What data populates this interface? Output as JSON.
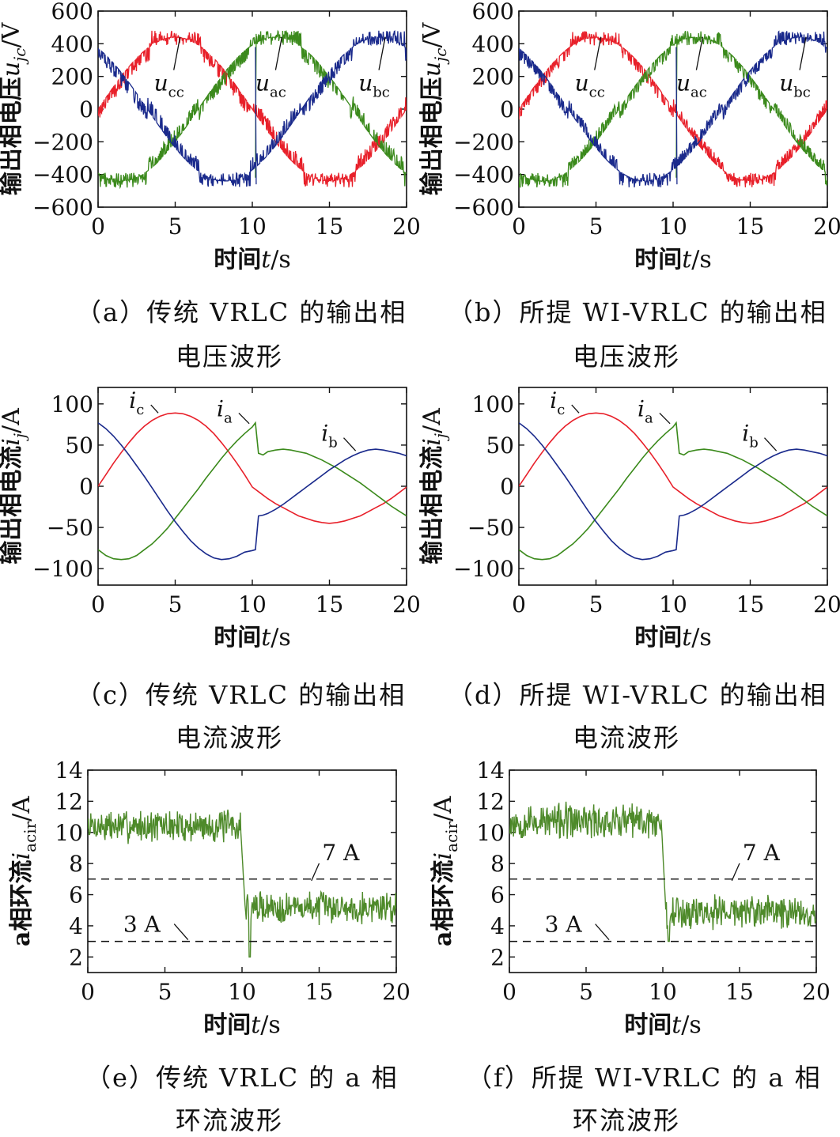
{
  "captions": [
    {
      "line1": "（a）传统 VRLC 的输出相",
      "line2": "电压波形"
    },
    {
      "line1": "（b）所提 WI-VRLC 的输出相",
      "line2": "电压波形"
    },
    {
      "line1": "（c）传统 VRLC 的输出相",
      "line2": "电流波形"
    },
    {
      "line1": "（d）所提 WI-VRLC 的输出相",
      "line2": "电流波形"
    },
    {
      "line1": "（e）传统 VRLC 的 a 相",
      "line2": "环流波形"
    },
    {
      "line1": "（f）所提 WI-VRLC 的 a 相",
      "line2": "环流波形"
    }
  ],
  "colors": {
    "red": "#e8202a",
    "green": "#3b8a1c",
    "blue": "#1a2a8c",
    "green_dark": "#4e8a2a",
    "axis": "#111111"
  },
  "chart_data": [
    {
      "id": "a",
      "type": "line",
      "xlabel": "时间t/s",
      "ylabel": "输出相电压u_jc/V",
      "xlim": [
        0,
        20
      ],
      "ylim": [
        -600,
        600
      ],
      "xticks": [
        0,
        5,
        10,
        15,
        20
      ],
      "yticks": [
        600,
        400,
        200,
        0,
        -200,
        -400,
        -600
      ],
      "series": [
        {
          "name": "u_cc",
          "color": "red",
          "amplitude": 440,
          "phase_deg": 0,
          "pwm_noise": 55
        },
        {
          "name": "u_ac",
          "color": "green",
          "amplitude": 440,
          "phase_deg": 240,
          "pwm_noise": 55,
          "step_at": 10.2
        },
        {
          "name": "u_bc",
          "color": "blue",
          "amplitude": 440,
          "phase_deg": 120,
          "pwm_noise": 55,
          "step_at": 10.2
        }
      ],
      "annotations": [
        {
          "text": "u_cc",
          "x": 4.6,
          "y": 200
        },
        {
          "text": "u_ac",
          "x": 11.2,
          "y": 200
        },
        {
          "text": "u_bc",
          "x": 17.9,
          "y": 200
        }
      ]
    },
    {
      "id": "b",
      "type": "line",
      "xlabel": "时间t/s",
      "ylabel": "输出相电压u_jc/V",
      "xlim": [
        0,
        20
      ],
      "ylim": [
        -600,
        600
      ],
      "xticks": [
        0,
        5,
        10,
        15,
        20
      ],
      "yticks": [
        600,
        400,
        200,
        0,
        -200,
        -400,
        -600
      ],
      "series": [
        {
          "name": "u_cc",
          "color": "red",
          "amplitude": 440,
          "phase_deg": 0,
          "pwm_noise": 45
        },
        {
          "name": "u_ac",
          "color": "green",
          "amplitude": 440,
          "phase_deg": 240,
          "pwm_noise": 45,
          "step_at": 10.2
        },
        {
          "name": "u_bc",
          "color": "blue",
          "amplitude": 440,
          "phase_deg": 120,
          "pwm_noise": 45,
          "step_at": 10.2
        }
      ],
      "annotations": [
        {
          "text": "u_cc",
          "x": 4.6,
          "y": 200
        },
        {
          "text": "u_ac",
          "x": 11.2,
          "y": 200
        },
        {
          "text": "u_bc",
          "x": 17.9,
          "y": 200
        }
      ]
    },
    {
      "id": "c",
      "type": "line",
      "xlabel": "时间t/s",
      "ylabel": "输出相电流i_j/A",
      "xlim": [
        0,
        20
      ],
      "ylim": [
        -120,
        120
      ],
      "xticks": [
        0,
        5,
        10,
        15,
        20
      ],
      "yticks": [
        100,
        50,
        0,
        -50,
        -100
      ],
      "series": [
        {
          "name": "i_c",
          "color": "red",
          "x": [
            0,
            0.5,
            1,
            1.5,
            2,
            2.5,
            3,
            3.5,
            4,
            4.5,
            5,
            5.5,
            6,
            6.5,
            7,
            7.5,
            8,
            8.5,
            9,
            9.5,
            10,
            10.5,
            11,
            11.5,
            12,
            12.5,
            13,
            13.5,
            14,
            14.5,
            15,
            15.5,
            16,
            16.5,
            17,
            17.5,
            18,
            18.5,
            19,
            19.5,
            20
          ],
          "values": [
            0,
            14,
            28,
            41,
            53,
            64,
            73,
            80,
            85,
            88,
            89,
            88,
            85,
            80,
            73,
            64,
            53,
            41,
            28,
            14,
            -1,
            -8,
            -15,
            -21,
            -26,
            -31,
            -36,
            -39,
            -42,
            -44,
            -45,
            -44,
            -42,
            -39,
            -36,
            -31,
            -26,
            -21,
            -15,
            -8,
            -1
          ]
        },
        {
          "name": "i_a",
          "color": "green",
          "x": [
            0,
            0.5,
            1,
            1.5,
            2,
            2.5,
            3,
            3.5,
            4,
            4.5,
            5,
            5.5,
            6,
            6.5,
            7,
            7.5,
            8,
            8.5,
            9,
            9.5,
            10,
            10.2,
            10.4,
            10.7,
            11,
            11.5,
            12,
            12.5,
            13,
            13.5,
            14,
            14.5,
            15,
            15.5,
            16,
            16.5,
            17,
            17.5,
            18,
            18.5,
            19,
            19.5,
            20
          ],
          "values": [
            -77,
            -84,
            -88,
            -89,
            -88,
            -84,
            -77,
            -70,
            -61,
            -51,
            -39,
            -27,
            -15,
            -3,
            10,
            22,
            34,
            45,
            55,
            64,
            72,
            77,
            40,
            38,
            42,
            44,
            45,
            44,
            42,
            40,
            36,
            32,
            27,
            22,
            16,
            10,
            4,
            -3,
            -10,
            -17,
            -24,
            -30,
            -36
          ]
        },
        {
          "name": "i_b",
          "color": "blue",
          "x": [
            0,
            0.5,
            1,
            1.5,
            2,
            2.5,
            3,
            3.5,
            4,
            4.5,
            5,
            5.5,
            6,
            6.5,
            7,
            7.5,
            8,
            8.5,
            9,
            9.5,
            10,
            10.2,
            10.4,
            10.7,
            11,
            11.5,
            12,
            12.5,
            13,
            13.5,
            14,
            14.5,
            15,
            15.5,
            16,
            16.5,
            17,
            17.5,
            18,
            18.5,
            19,
            19.5,
            20
          ],
          "values": [
            77,
            70,
            61,
            50,
            38,
            25,
            12,
            -2,
            -16,
            -30,
            -43,
            -55,
            -66,
            -75,
            -82,
            -87,
            -89,
            -88,
            -85,
            -80,
            -78,
            -77,
            -36,
            -35,
            -33,
            -28,
            -22,
            -15,
            -8,
            -1,
            6,
            13,
            20,
            26,
            32,
            37,
            41,
            44,
            45,
            44,
            42,
            40,
            37
          ]
        }
      ],
      "annotations": [
        {
          "text": "i_c",
          "x": 2.5,
          "y": 95
        },
        {
          "text": "i_a",
          "x": 8.2,
          "y": 85
        },
        {
          "text": "i_b",
          "x": 15.0,
          "y": 55
        }
      ]
    },
    {
      "id": "d",
      "type": "line",
      "xlabel": "时间t/s",
      "ylabel": "输出相电流i_j/A",
      "xlim": [
        0,
        20
      ],
      "ylim": [
        -120,
        120
      ],
      "xticks": [
        0,
        5,
        10,
        15,
        20
      ],
      "yticks": [
        100,
        50,
        0,
        -50,
        -100
      ],
      "series": [
        {
          "name": "i_c",
          "color": "red",
          "x": [
            0,
            0.5,
            1,
            1.5,
            2,
            2.5,
            3,
            3.5,
            4,
            4.5,
            5,
            5.5,
            6,
            6.5,
            7,
            7.5,
            8,
            8.5,
            9,
            9.5,
            10,
            10.5,
            11,
            11.5,
            12,
            12.5,
            13,
            13.5,
            14,
            14.5,
            15,
            15.5,
            16,
            16.5,
            17,
            17.5,
            18,
            18.5,
            19,
            19.5,
            20
          ],
          "values": [
            0,
            14,
            28,
            41,
            53,
            64,
            73,
            80,
            85,
            88,
            89,
            88,
            85,
            80,
            73,
            64,
            53,
            41,
            28,
            14,
            -1,
            -8,
            -15,
            -21,
            -26,
            -31,
            -36,
            -39,
            -42,
            -44,
            -45,
            -44,
            -42,
            -39,
            -36,
            -31,
            -26,
            -21,
            -15,
            -8,
            -1
          ]
        },
        {
          "name": "i_a",
          "color": "green",
          "x": [
            0,
            0.5,
            1,
            1.5,
            2,
            2.5,
            3,
            3.5,
            4,
            4.5,
            5,
            5.5,
            6,
            6.5,
            7,
            7.5,
            8,
            8.5,
            9,
            9.5,
            10,
            10.2,
            10.4,
            10.7,
            11,
            11.5,
            12,
            12.5,
            13,
            13.5,
            14,
            14.5,
            15,
            15.5,
            16,
            16.5,
            17,
            17.5,
            18,
            18.5,
            19,
            19.5,
            20
          ],
          "values": [
            -77,
            -84,
            -88,
            -89,
            -88,
            -84,
            -77,
            -70,
            -61,
            -51,
            -39,
            -27,
            -15,
            -3,
            10,
            22,
            34,
            45,
            55,
            64,
            72,
            77,
            40,
            38,
            42,
            44,
            45,
            44,
            42,
            40,
            36,
            32,
            27,
            22,
            16,
            10,
            4,
            -3,
            -10,
            -17,
            -24,
            -30,
            -36
          ]
        },
        {
          "name": "i_b",
          "color": "blue",
          "x": [
            0,
            0.5,
            1,
            1.5,
            2,
            2.5,
            3,
            3.5,
            4,
            4.5,
            5,
            5.5,
            6,
            6.5,
            7,
            7.5,
            8,
            8.5,
            9,
            9.5,
            10,
            10.2,
            10.4,
            10.7,
            11,
            11.5,
            12,
            12.5,
            13,
            13.5,
            14,
            14.5,
            15,
            15.5,
            16,
            16.5,
            17,
            17.5,
            18,
            18.5,
            19,
            19.5,
            20
          ],
          "values": [
            77,
            70,
            61,
            50,
            38,
            25,
            12,
            -2,
            -16,
            -30,
            -43,
            -55,
            -66,
            -75,
            -82,
            -87,
            -89,
            -88,
            -85,
            -80,
            -78,
            -77,
            -36,
            -35,
            -33,
            -28,
            -22,
            -15,
            -8,
            -1,
            6,
            13,
            20,
            26,
            32,
            37,
            41,
            44,
            45,
            44,
            42,
            40,
            37
          ]
        }
      ],
      "annotations": [
        {
          "text": "i_c",
          "x": 2.5,
          "y": 95
        },
        {
          "text": "i_a",
          "x": 8.2,
          "y": 85
        },
        {
          "text": "i_b",
          "x": 15.0,
          "y": 55
        }
      ]
    },
    {
      "id": "e",
      "type": "line",
      "xlabel": "时间t/s",
      "ylabel": "a相环流i_acir/A",
      "xlim": [
        0,
        20
      ],
      "ylim": [
        1,
        14
      ],
      "xticks": [
        0,
        5,
        10,
        15,
        20
      ],
      "yticks": [
        14,
        12,
        10,
        8,
        6,
        4,
        2
      ],
      "series": [
        {
          "name": "i_acir",
          "color": "green_dark",
          "seg1": {
            "x0": 0,
            "x1": 10,
            "mean": 10.4,
            "noise": 0.85
          },
          "seg2": {
            "x0": 10,
            "x1": 20,
            "mean": 5.2,
            "noise": 0.85
          },
          "dip": {
            "x": 10.5,
            "y": 2.0
          }
        }
      ],
      "reference_lines": [
        {
          "y": 7,
          "label": "7 A"
        },
        {
          "y": 3,
          "label": "3 A"
        }
      ]
    },
    {
      "id": "f",
      "type": "line",
      "xlabel": "时间t/s",
      "ylabel": "a相环流i_acir/A",
      "xlim": [
        0,
        20
      ],
      "ylim": [
        1,
        14
      ],
      "xticks": [
        0,
        5,
        10,
        15,
        20
      ],
      "yticks": [
        14,
        12,
        10,
        8,
        6,
        4,
        2
      ],
      "series": [
        {
          "name": "i_acir",
          "color": "green_dark",
          "seg1": {
            "x0": 0,
            "x1": 10,
            "mean": 10.7,
            "noise": 0.95
          },
          "seg2": {
            "x0": 10,
            "x1": 20,
            "mean": 4.9,
            "noise": 0.95
          },
          "dip": {
            "x": 10.4,
            "y": 3.0
          }
        }
      ],
      "reference_lines": [
        {
          "y": 7,
          "label": "7 A"
        },
        {
          "y": 3,
          "label": "3 A"
        }
      ]
    }
  ]
}
